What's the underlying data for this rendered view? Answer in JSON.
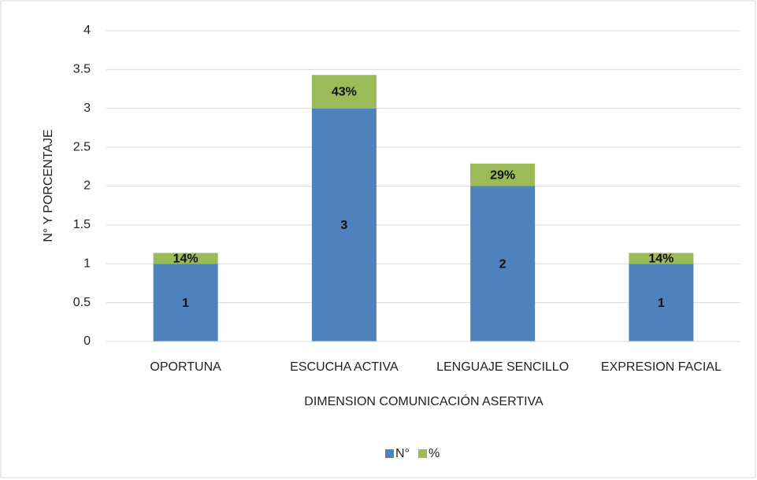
{
  "chart_data": {
    "type": "stacked_bar",
    "categories": [
      "OPORTUNA",
      "ESCUCHA ACTIVA",
      "LENGUAJE SENCILLO",
      "EXPRESION FACIAL"
    ],
    "series": [
      {
        "name": "N°",
        "color": "#4f81bd",
        "values": [
          1,
          3,
          2,
          1
        ]
      },
      {
        "name": "%",
        "color": "#9bbb59",
        "values": [
          0.14,
          0.43,
          0.29,
          0.14
        ],
        "value_labels": [
          "14%",
          "43%",
          "29%",
          "14%"
        ]
      }
    ],
    "ylabel": "N° Y PORCENTAJE",
    "xlabel": "DIMENSION COMUNICACIÓN ASERTIVA",
    "ylim": [
      0,
      4
    ],
    "yticks": [
      0,
      0.5,
      1,
      1.5,
      2,
      2.5,
      3,
      3.5,
      4
    ],
    "grid": true,
    "legend": "bottom"
  }
}
